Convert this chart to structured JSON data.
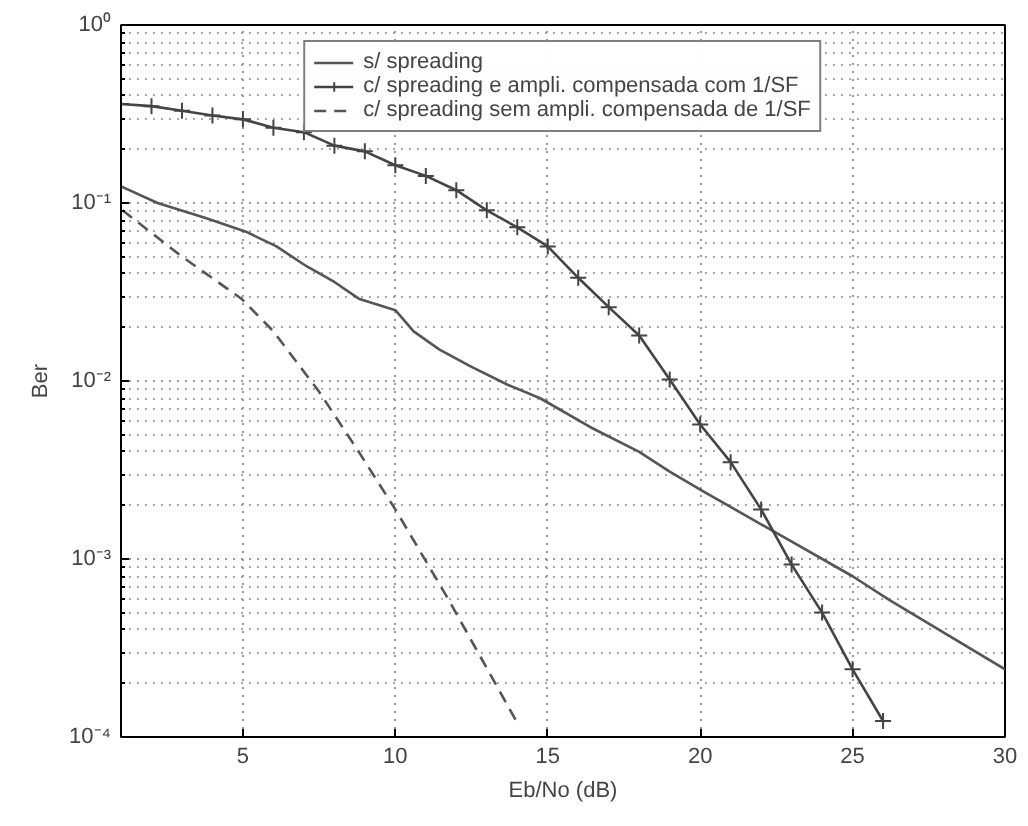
{
  "chart_data": {
    "type": "line",
    "xlabel": "Eb/No (dB)",
    "ylabel": "Ber",
    "log": "y",
    "grid": true,
    "legend": "top",
    "xlim": [
      1,
      30
    ],
    "xticks": [
      5,
      10,
      15,
      20,
      25,
      30
    ],
    "ylim": [
      0.0001,
      1
    ],
    "yticks": [
      {
        "value": 0.0001,
        "label": "10⁻⁴"
      },
      {
        "value": 0.001,
        "label": "10⁻³"
      },
      {
        "value": 0.01,
        "label": "10⁻²"
      },
      {
        "value": 0.1,
        "label": "10⁻¹"
      },
      {
        "value": 1,
        "label": "10⁰"
      }
    ],
    "series": [
      {
        "name": "s/ spreading",
        "color": "#555555",
        "marker": "none",
        "line_style": "solid",
        "x": [
          1,
          2.2,
          3.8,
          5.1,
          6.1,
          7.1,
          8,
          8.8,
          10,
          10.6,
          11.45,
          12.5,
          13.7,
          14.75,
          16.4,
          18,
          19,
          20.1,
          22.5,
          25,
          26.2,
          30
        ],
        "values": [
          0.124,
          0.1,
          0.082,
          0.069,
          0.057,
          0.044,
          0.036,
          0.029,
          0.025,
          0.019,
          0.015,
          0.012,
          0.0095,
          0.008,
          0.0055,
          0.004,
          0.0031,
          0.0024,
          0.0014,
          0.0008,
          0.00059,
          0.00024
        ]
      },
      {
        "name": "c/ spreading e ampli. compensada com 1/SF",
        "color": "#444444",
        "marker": "cross",
        "line_style": "solid",
        "x": [
          1,
          2,
          3,
          4,
          5,
          6,
          7,
          8,
          9,
          10,
          11,
          12,
          13,
          14,
          15,
          16,
          17,
          18,
          19,
          20,
          21,
          22,
          23,
          24,
          25,
          26
        ],
        "values": [
          0.36,
          0.35,
          0.33,
          0.31,
          0.295,
          0.265,
          0.25,
          0.21,
          0.195,
          0.163,
          0.142,
          0.118,
          0.091,
          0.073,
          0.057,
          0.038,
          0.026,
          0.018,
          0.0102,
          0.0057,
          0.0035,
          0.0019,
          0.00093,
          0.0005,
          0.00024,
          0.000123
        ]
      },
      {
        "name": "c/ spreading sem ampli. compensada de 1/SF",
        "color": "#555555",
        "marker": "none",
        "line_style": "dashed",
        "x": [
          1.05,
          3,
          4.95,
          6,
          7.5,
          8.8,
          10,
          11.75,
          14
        ],
        "values": [
          0.091,
          0.05,
          0.029,
          0.019,
          0.0087,
          0.004,
          0.0019,
          0.00059,
          0.00012
        ]
      }
    ]
  }
}
